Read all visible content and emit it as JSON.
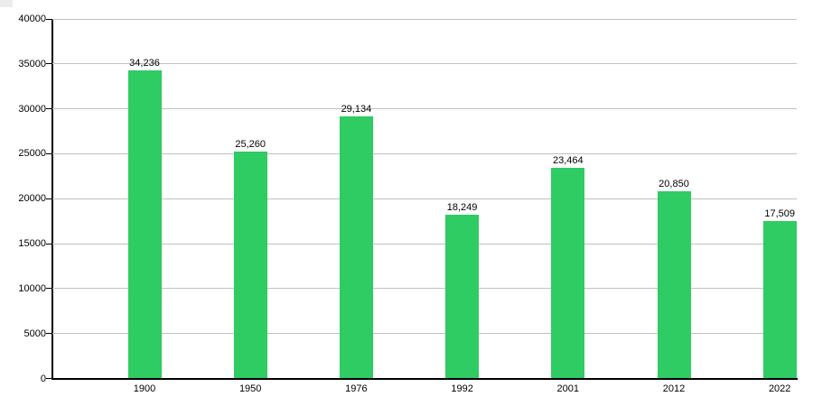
{
  "chart_data": {
    "type": "bar",
    "categories": [
      "1900",
      "1950",
      "1976",
      "1992",
      "2001",
      "2012",
      "2022"
    ],
    "values": [
      34236,
      25260,
      29134,
      18249,
      23464,
      20850,
      17509
    ],
    "value_labels": [
      "34,236",
      "25,260",
      "29,134",
      "18,249",
      "23,464",
      "20,850",
      "17,509"
    ],
    "title": "",
    "xlabel": "",
    "ylabel": "",
    "ylim": [
      0,
      40000
    ],
    "ytick_interval": 5000,
    "ytick_labels": [
      "0",
      "5000",
      "10000",
      "15000",
      "20000",
      "25000",
      "30000",
      "35000",
      "40000"
    ],
    "grid": true,
    "legend_position": "none",
    "colors": {
      "bar": "#2fcb63",
      "gridline": "#c0c0c0",
      "axis": "#000000",
      "text": "#000000",
      "background": "#ffffff"
    }
  }
}
